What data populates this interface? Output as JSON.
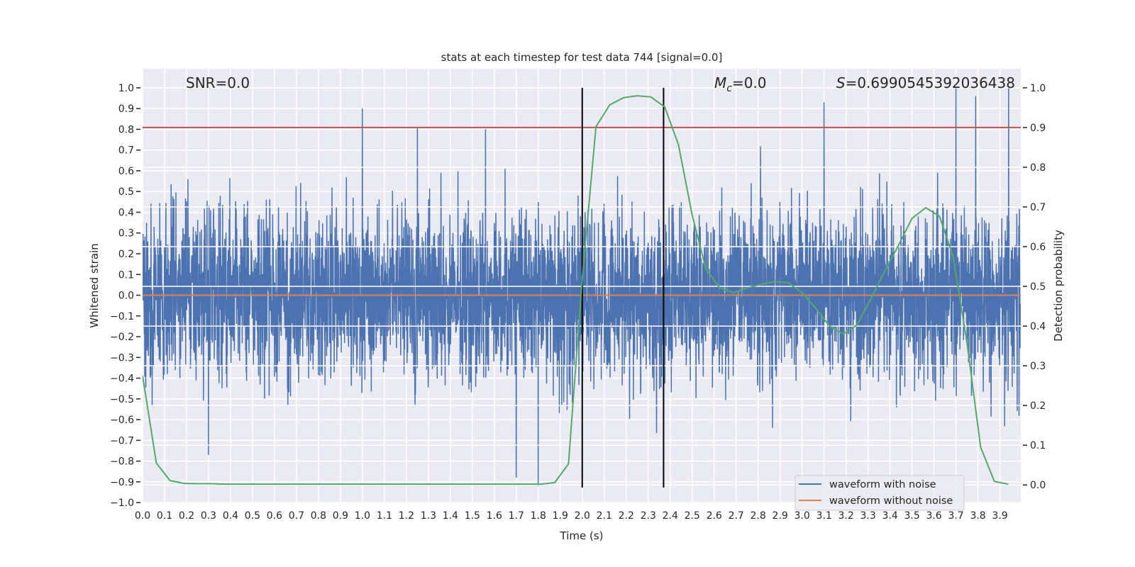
{
  "chart_data": {
    "type": "line",
    "title": "stats at each timestep for test data 744 [signal=0.0]",
    "xlabel": "Time (s)",
    "ylabel": "Whitened strain",
    "ylabel_right": "Detection probability",
    "xlim": [
      0,
      3.995
    ],
    "ylim": [
      -1.003,
      1.092
    ],
    "ylim_right": [
      -0.046,
      1.048
    ],
    "grid": true,
    "x_ticks": [
      "0.0",
      "0.1",
      "0.2",
      "0.3",
      "0.4",
      "0.5",
      "0.6",
      "0.7",
      "0.8",
      "0.9",
      "1.0",
      "1.1",
      "1.2",
      "1.3",
      "1.4",
      "1.5",
      "1.6",
      "1.7",
      "1.8",
      "1.9",
      "2.0",
      "2.1",
      "2.2",
      "2.3",
      "2.4",
      "2.5",
      "2.6",
      "2.7",
      "2.8",
      "2.9",
      "3.0",
      "3.1",
      "3.2",
      "3.3",
      "3.4",
      "3.5",
      "3.6",
      "3.7",
      "3.8",
      "3.9"
    ],
    "y_ticks": [
      "-1.0",
      "-0.9",
      "-0.8",
      "-0.7",
      "-0.6",
      "-0.5",
      "-0.4",
      "-0.3",
      "-0.2",
      "-0.1",
      "0.0",
      "0.1",
      "0.2",
      "0.3",
      "0.4",
      "0.5",
      "0.6",
      "0.7",
      "0.8",
      "0.9",
      "1.0"
    ],
    "y_ticks_right": [
      "0.0",
      "0.1",
      "0.2",
      "0.3",
      "0.4",
      "0.5",
      "0.6",
      "0.7",
      "0.8",
      "0.9",
      "1.0"
    ],
    "annotations": {
      "snr": "SNR=0.0",
      "mc_symbol": "M",
      "mc_sub": "c",
      "mc_value": "=0.0",
      "s_symbol": "S",
      "s_value": "=0.6990545392036438"
    },
    "legend": {
      "placement": "lower-right",
      "entries": [
        "waveform with noise",
        "waveform without noise"
      ]
    },
    "series": [
      {
        "name": "waveform with noise",
        "axis": "left",
        "color": "#4c72b0",
        "description": "noisy whitened strain, ~N(0,0.2) samples",
        "notable_peaks": [
          [
            1.0,
            0.9
          ],
          [
            1.25,
            0.81
          ],
          [
            1.56,
            0.8
          ],
          [
            3.1,
            0.93
          ],
          [
            3.7,
            1.0
          ],
          [
            3.79,
            0.96
          ],
          [
            3.94,
            1.0
          ],
          [
            1.8,
            -0.92
          ],
          [
            1.7,
            -0.88
          ],
          [
            0.3,
            -0.77
          ]
        ]
      },
      {
        "name": "waveform without noise",
        "axis": "left",
        "color": "#dd8452",
        "x": [
          0,
          3.995
        ],
        "y": [
          0.0,
          0.0
        ]
      },
      {
        "name": "detection probability",
        "axis": "right",
        "color": "#55a868",
        "x_step": 0.0625,
        "y": [
          0.275,
          0.055,
          0.011,
          0.004,
          0.003,
          0.003,
          0.002,
          0.002,
          0.002,
          0.002,
          0.002,
          0.002,
          0.002,
          0.002,
          0.002,
          0.002,
          0.002,
          0.002,
          0.002,
          0.002,
          0.002,
          0.002,
          0.002,
          0.002,
          0.002,
          0.002,
          0.002,
          0.002,
          0.002,
          0.002,
          0.006,
          0.053,
          0.52,
          0.902,
          0.957,
          0.975,
          0.98,
          0.977,
          0.952,
          0.857,
          0.68,
          0.544,
          0.496,
          0.484,
          0.496,
          0.505,
          0.512,
          0.509,
          0.484,
          0.445,
          0.4,
          0.38,
          0.403,
          0.468,
          0.537,
          0.602,
          0.671,
          0.698,
          0.677,
          0.575,
          0.359,
          0.095,
          0.009,
          0.002
        ]
      }
    ],
    "threshold": {
      "axis": "right",
      "value": 0.9,
      "color": "#c44e52"
    },
    "event_lines": {
      "color": "#000000",
      "x": [
        2.0,
        2.37
      ]
    },
    "colors": {
      "background": "#eaeaf2",
      "grid": "#ffffff"
    }
  }
}
